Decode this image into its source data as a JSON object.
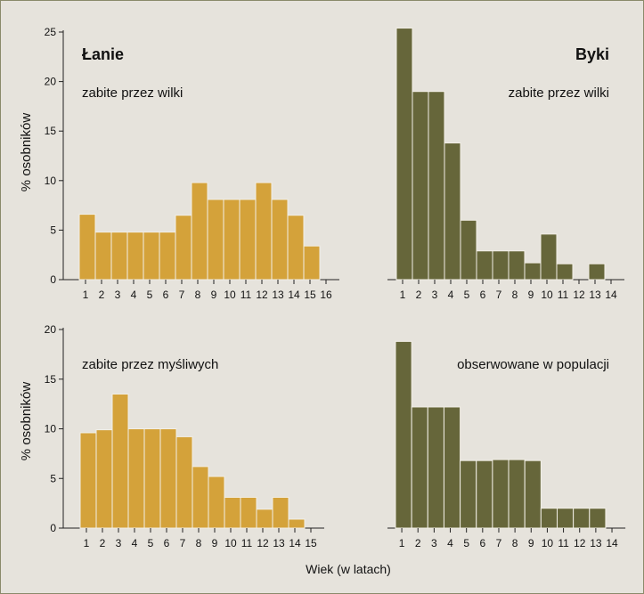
{
  "chart_data": [
    {
      "type": "bar",
      "id": "panel-hinds-wolves",
      "title": "Łanie",
      "subtitle": "zabite przez wilki",
      "ylabel": "% osobników",
      "ylim": [
        0,
        25
      ],
      "yticks": [
        0,
        5,
        10,
        15,
        20,
        25
      ],
      "categories": [
        "1",
        "2",
        "3",
        "4",
        "5",
        "6",
        "7",
        "8",
        "9",
        "10",
        "11",
        "12",
        "13",
        "14",
        "15",
        "16"
      ],
      "values": [
        6.6,
        4.8,
        4.8,
        4.8,
        4.8,
        4.8,
        6.5,
        9.8,
        8.1,
        8.1,
        8.1,
        9.8,
        8.1,
        6.5,
        3.4,
        0
      ],
      "color": "#d4a23a"
    },
    {
      "type": "bar",
      "id": "panel-stags-wolves",
      "title": "Byki",
      "subtitle": "zabite przez wilki",
      "ylabel": "",
      "ylim": [
        0,
        25
      ],
      "yticks": [
        0,
        5,
        10,
        15,
        20,
        25
      ],
      "categories": [
        "1",
        "2",
        "3",
        "4",
        "5",
        "6",
        "7",
        "8",
        "9",
        "10",
        "11",
        "12",
        "13",
        "14"
      ],
      "values": [
        25.4,
        19,
        19,
        13.8,
        6,
        2.9,
        2.9,
        2.9,
        1.7,
        4.6,
        1.6,
        0,
        1.6,
        0
      ],
      "color": "#66663a"
    },
    {
      "type": "bar",
      "id": "panel-hinds-hunters",
      "title": "",
      "subtitle": "zabite przez myśliwych",
      "ylabel": "% osobników",
      "ylim": [
        0,
        20
      ],
      "yticks": [
        0,
        5,
        10,
        15,
        20
      ],
      "categories": [
        "1",
        "2",
        "3",
        "4",
        "5",
        "6",
        "7",
        "8",
        "9",
        "10",
        "11",
        "12",
        "13",
        "14",
        "15"
      ],
      "values": [
        9.6,
        9.9,
        13.5,
        10,
        10,
        10,
        9.2,
        6.2,
        5.2,
        3.1,
        3.1,
        1.9,
        3.1,
        0.9,
        0
      ],
      "color": "#d4a23a"
    },
    {
      "type": "bar",
      "id": "panel-stags-population",
      "title": "",
      "subtitle": "obserwowane w populacji",
      "ylabel": "",
      "ylim": [
        0,
        20
      ],
      "yticks": [
        0,
        5,
        10,
        15,
        20
      ],
      "categories": [
        "1",
        "2",
        "3",
        "4",
        "5",
        "6",
        "7",
        "8",
        "9",
        "10",
        "11",
        "12",
        "13",
        "14"
      ],
      "values": [
        18.8,
        12.2,
        12.2,
        12.2,
        6.8,
        6.8,
        6.9,
        6.9,
        6.8,
        2,
        2,
        2,
        2,
        0
      ],
      "color": "#66663a"
    }
  ],
  "xlabel": "Wiek (w latach)"
}
